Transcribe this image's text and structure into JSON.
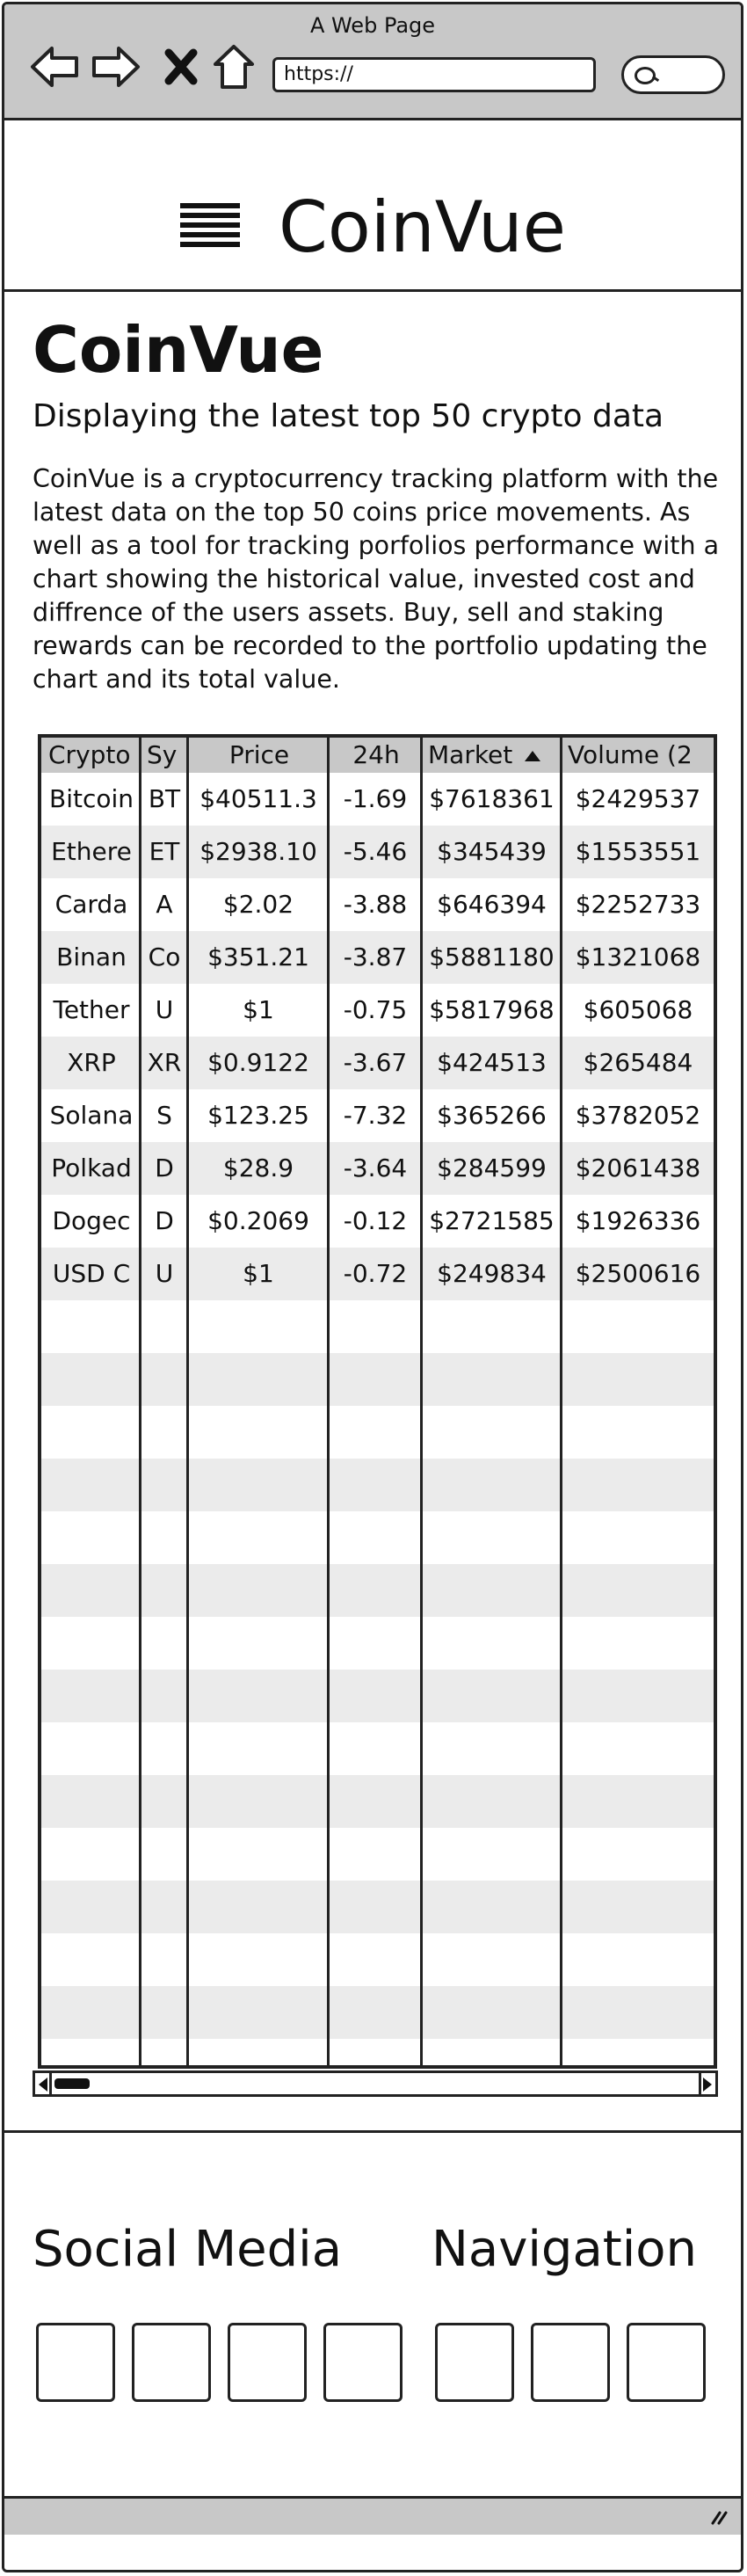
{
  "browser": {
    "window_title": "A Web Page",
    "url": "https://",
    "icons": [
      "back-arrow-icon",
      "forward-arrow-icon",
      "close-x-icon",
      "home-icon",
      "search-icon"
    ]
  },
  "app": {
    "brand": "CoinVue",
    "menu_icon": "hamburger-menu-icon"
  },
  "main": {
    "title": "CoinVue",
    "subtitle": "Displaying the latest top 50 crypto data",
    "description": "CoinVue is a cryptocurrency tracking platform with the latest data on the top 50 coins price movements. As well as a tool for tracking porfolios performance with a chart showing the historical value, invested cost and diffrence of the users assets. Buy, sell and staking rewards can be recorded to the portfolio updating the chart and its total value."
  },
  "table": {
    "columns": [
      "Crypto",
      "Sy",
      "Price",
      "24h",
      "Market",
      "Volume (2"
    ],
    "sorted_column": "Market",
    "sort_direction": "ascending",
    "rows": [
      [
        "Bitcoin",
        "BT",
        "$40511.3",
        "-1.69",
        "$7618361",
        "$2429537"
      ],
      [
        "Ethere",
        "ET",
        "$2938.10",
        "-5.46",
        "$345439",
        "$1553551"
      ],
      [
        "Carda",
        "A",
        "$2.02",
        "-3.88",
        "$646394",
        "$2252733"
      ],
      [
        "Binan",
        "Co",
        "$351.21",
        "-3.87",
        "$5881180",
        "$1321068"
      ],
      [
        "Tether",
        "U",
        "$1",
        "-0.75",
        "$5817968",
        "$605068"
      ],
      [
        "XRP",
        "XR",
        "$0.9122",
        "-3.67",
        "$424513",
        "$265484"
      ],
      [
        "Solana",
        "S",
        "$123.25",
        "-7.32",
        "$365266",
        "$3782052"
      ],
      [
        "Polkad",
        "D",
        "$28.9",
        "-3.64",
        "$284599",
        "$2061438"
      ],
      [
        "Dogec",
        "D",
        "$0.2069",
        "-0.12",
        "$2721585",
        "$1926336"
      ],
      [
        "USD C",
        "U",
        "$1",
        "-0.72",
        "$249834",
        "$2500616"
      ]
    ],
    "empty_rows": 15
  },
  "footer": {
    "social_title": "Social Media",
    "nav_title": "Navigation"
  },
  "colors": {
    "chrome": "#c8c8c8",
    "stripe": "#ebebeb",
    "ink": "#222222"
  }
}
